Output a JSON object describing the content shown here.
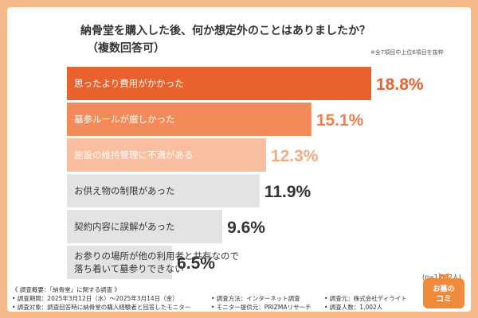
{
  "title": "納骨堂を購入した後、何か想定外のことはありましたか？",
  "subtitle": "（複数回答可）",
  "note": "※全7項目中上位6項目を抜粋",
  "sample_size": "(n=1,002人)",
  "chart_data": {
    "type": "bar",
    "orientation": "horizontal",
    "categories": [
      [
        "思ったより費用がかかった"
      ],
      [
        "墓参ルールが厳しかった"
      ],
      [
        "施設の維持管理に不満がある"
      ],
      [
        "お供え物の制限があった"
      ],
      [
        "契約内容に誤解があった"
      ],
      [
        "お参りの場所が他の利用者と共有なので",
        "落ち着いて墓参りできない"
      ]
    ],
    "values": [
      18.8,
      15.1,
      12.3,
      11.9,
      9.6,
      6.5
    ],
    "value_labels": [
      "18.8%",
      "15.1%",
      "12.3%",
      "11.9%",
      "9.6%",
      "6.5%"
    ],
    "unit": "%",
    "colors": {
      "bars": [
        "#e9622e",
        "#f28a5a",
        "#f9bea0",
        "#e3e3e3",
        "#e3e3e3",
        "#e3e3e3"
      ],
      "labels": [
        "#ffffff",
        "#ffffff",
        "#ffffff",
        "#333333",
        "#333333",
        "#333333"
      ],
      "values": [
        "#e9622e",
        "#f08050",
        "#f7a985",
        "#333333",
        "#333333",
        "#333333"
      ]
    }
  },
  "footer": {
    "overview": "《 調査概要：「納骨堂」に関する調査 》",
    "period": "• 調査期間：2025年3月12日（水）～2025年3月14日（金）",
    "method": "• 調査方法：インターネット調査",
    "source": "• 調査元：株式会社ディライト",
    "target": "• 調査対象：調査回答時に納骨堂の購入経験者と回答したモニター",
    "provider": "• モニター提供元：PRIZMAリサーチ",
    "respondents": "• 調査人数：1,002人"
  },
  "logo": {
    "line1": "お墓の",
    "line2": "コミ"
  }
}
